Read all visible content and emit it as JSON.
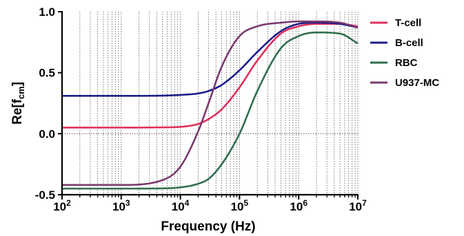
{
  "chart_data": {
    "type": "line",
    "xlabel": "Frequency (Hz)",
    "ylabel_main": "Re[f",
    "ylabel_sub": "cm",
    "ylabel_close": "]",
    "x_scale": "log",
    "xlim": [
      100,
      10000000
    ],
    "ylim": [
      -0.5,
      1.0
    ],
    "x_ticks": [
      {
        "value": 100,
        "base": "10",
        "exp": "2"
      },
      {
        "value": 1000,
        "base": "10",
        "exp": "3"
      },
      {
        "value": 10000,
        "base": "10",
        "exp": "4"
      },
      {
        "value": 100000,
        "base": "10",
        "exp": "5"
      },
      {
        "value": 1000000,
        "base": "10",
        "exp": "6"
      },
      {
        "value": 10000000,
        "base": "10",
        "exp": "7"
      }
    ],
    "y_ticks": [
      {
        "value": -0.5,
        "label": "-0.5"
      },
      {
        "value": 0.0,
        "label": "0.0"
      },
      {
        "value": 0.5,
        "label": "0.5"
      },
      {
        "value": 1.0,
        "label": "1.0"
      }
    ],
    "grid": "vertical dotted at minor decade ticks",
    "zero_line": "dotted",
    "legend_position": "right",
    "x": [
      100,
      1000,
      5000,
      10000,
      20000,
      30000,
      50000,
      100000,
      200000,
      500000,
      1000000,
      2000000,
      5000000,
      10000000
    ],
    "series": [
      {
        "name": "T-cell",
        "color": "#e0305a",
        "values": [
          0.05,
          0.05,
          0.052,
          0.056,
          0.08,
          0.12,
          0.2,
          0.38,
          0.6,
          0.82,
          0.88,
          0.9,
          0.9,
          0.88
        ]
      },
      {
        "name": "B-cell",
        "color": "#1c1d8a",
        "values": [
          0.31,
          0.31,
          0.312,
          0.318,
          0.33,
          0.35,
          0.4,
          0.52,
          0.67,
          0.84,
          0.9,
          0.91,
          0.9,
          0.87
        ]
      },
      {
        "name": "RBC",
        "color": "#2f6e4e",
        "values": [
          -0.45,
          -0.45,
          -0.448,
          -0.44,
          -0.41,
          -0.37,
          -0.25,
          0.0,
          0.35,
          0.7,
          0.8,
          0.83,
          0.82,
          0.74
        ]
      },
      {
        "name": "U937-MC",
        "color": "#7a3a6e",
        "values": [
          -0.42,
          -0.42,
          -0.38,
          -0.27,
          0.02,
          0.25,
          0.55,
          0.8,
          0.88,
          0.91,
          0.92,
          0.92,
          0.91,
          0.87
        ]
      }
    ]
  }
}
